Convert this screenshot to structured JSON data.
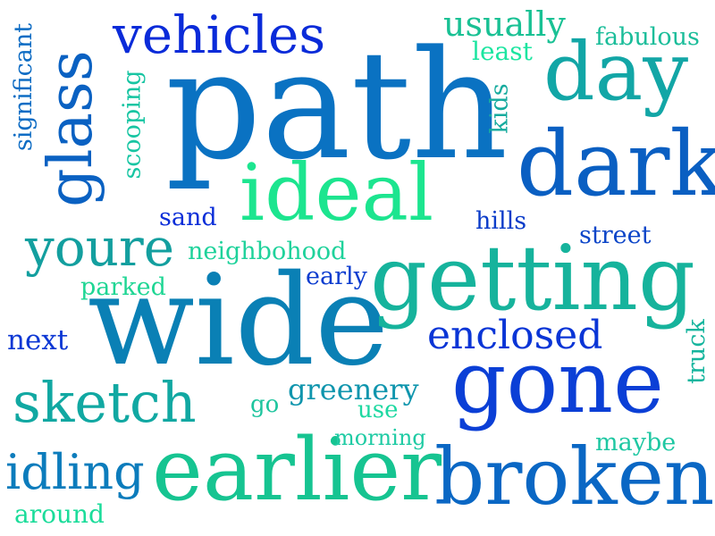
{
  "words": [
    {
      "text": "path",
      "color": "#0a72c2"
    },
    {
      "text": "wide",
      "color": "#0a80b5"
    },
    {
      "text": "getting",
      "color": "#16b39c"
    },
    {
      "text": "earlier",
      "color": "#16c491"
    },
    {
      "text": "broken",
      "color": "#0a67c4"
    },
    {
      "text": "gone",
      "color": "#0b3fd6"
    },
    {
      "text": "dark",
      "color": "#0a5fc2"
    },
    {
      "text": "day",
      "color": "#12a6a6"
    },
    {
      "text": "ideal",
      "color": "#1ce58f"
    },
    {
      "text": "glass",
      "color": "#0a61c2"
    },
    {
      "text": "vehicles",
      "color": "#0a2bd9"
    },
    {
      "text": "sketch",
      "color": "#11a8a2"
    },
    {
      "text": "youre",
      "color": "#139f9f"
    },
    {
      "text": "enclosed",
      "color": "#0a35d6"
    },
    {
      "text": "idling",
      "color": "#0c7cbc"
    },
    {
      "text": "usually",
      "color": "#19c194"
    },
    {
      "text": "greenery",
      "color": "#0f95ad"
    },
    {
      "text": "neighbohood",
      "color": "#1fd29b"
    },
    {
      "text": "parked",
      "color": "#1fd694"
    },
    {
      "text": "next",
      "color": "#0c37d4"
    },
    {
      "text": "around",
      "color": "#1bdc9a"
    },
    {
      "text": "fabulous",
      "color": "#1bbd9a"
    },
    {
      "text": "least",
      "color": "#1ce5a0"
    },
    {
      "text": "scooping",
      "color": "#17c5a2"
    },
    {
      "text": "significant",
      "color": "#0d6cc4"
    },
    {
      "text": "kids",
      "color": "#16ab9e"
    },
    {
      "text": "sand",
      "color": "#0a2dd8"
    },
    {
      "text": "hills",
      "color": "#0b3cc9"
    },
    {
      "text": "street",
      "color": "#0b45c8"
    },
    {
      "text": "early",
      "color": "#0b3ccf"
    },
    {
      "text": "go",
      "color": "#1ec59e"
    },
    {
      "text": "use",
      "color": "#1dd8a1"
    },
    {
      "text": "morning",
      "color": "#1fcba4"
    },
    {
      "text": "maybe",
      "color": "#1ec7a2"
    },
    {
      "text": "truck",
      "color": "#16b59e"
    }
  ]
}
